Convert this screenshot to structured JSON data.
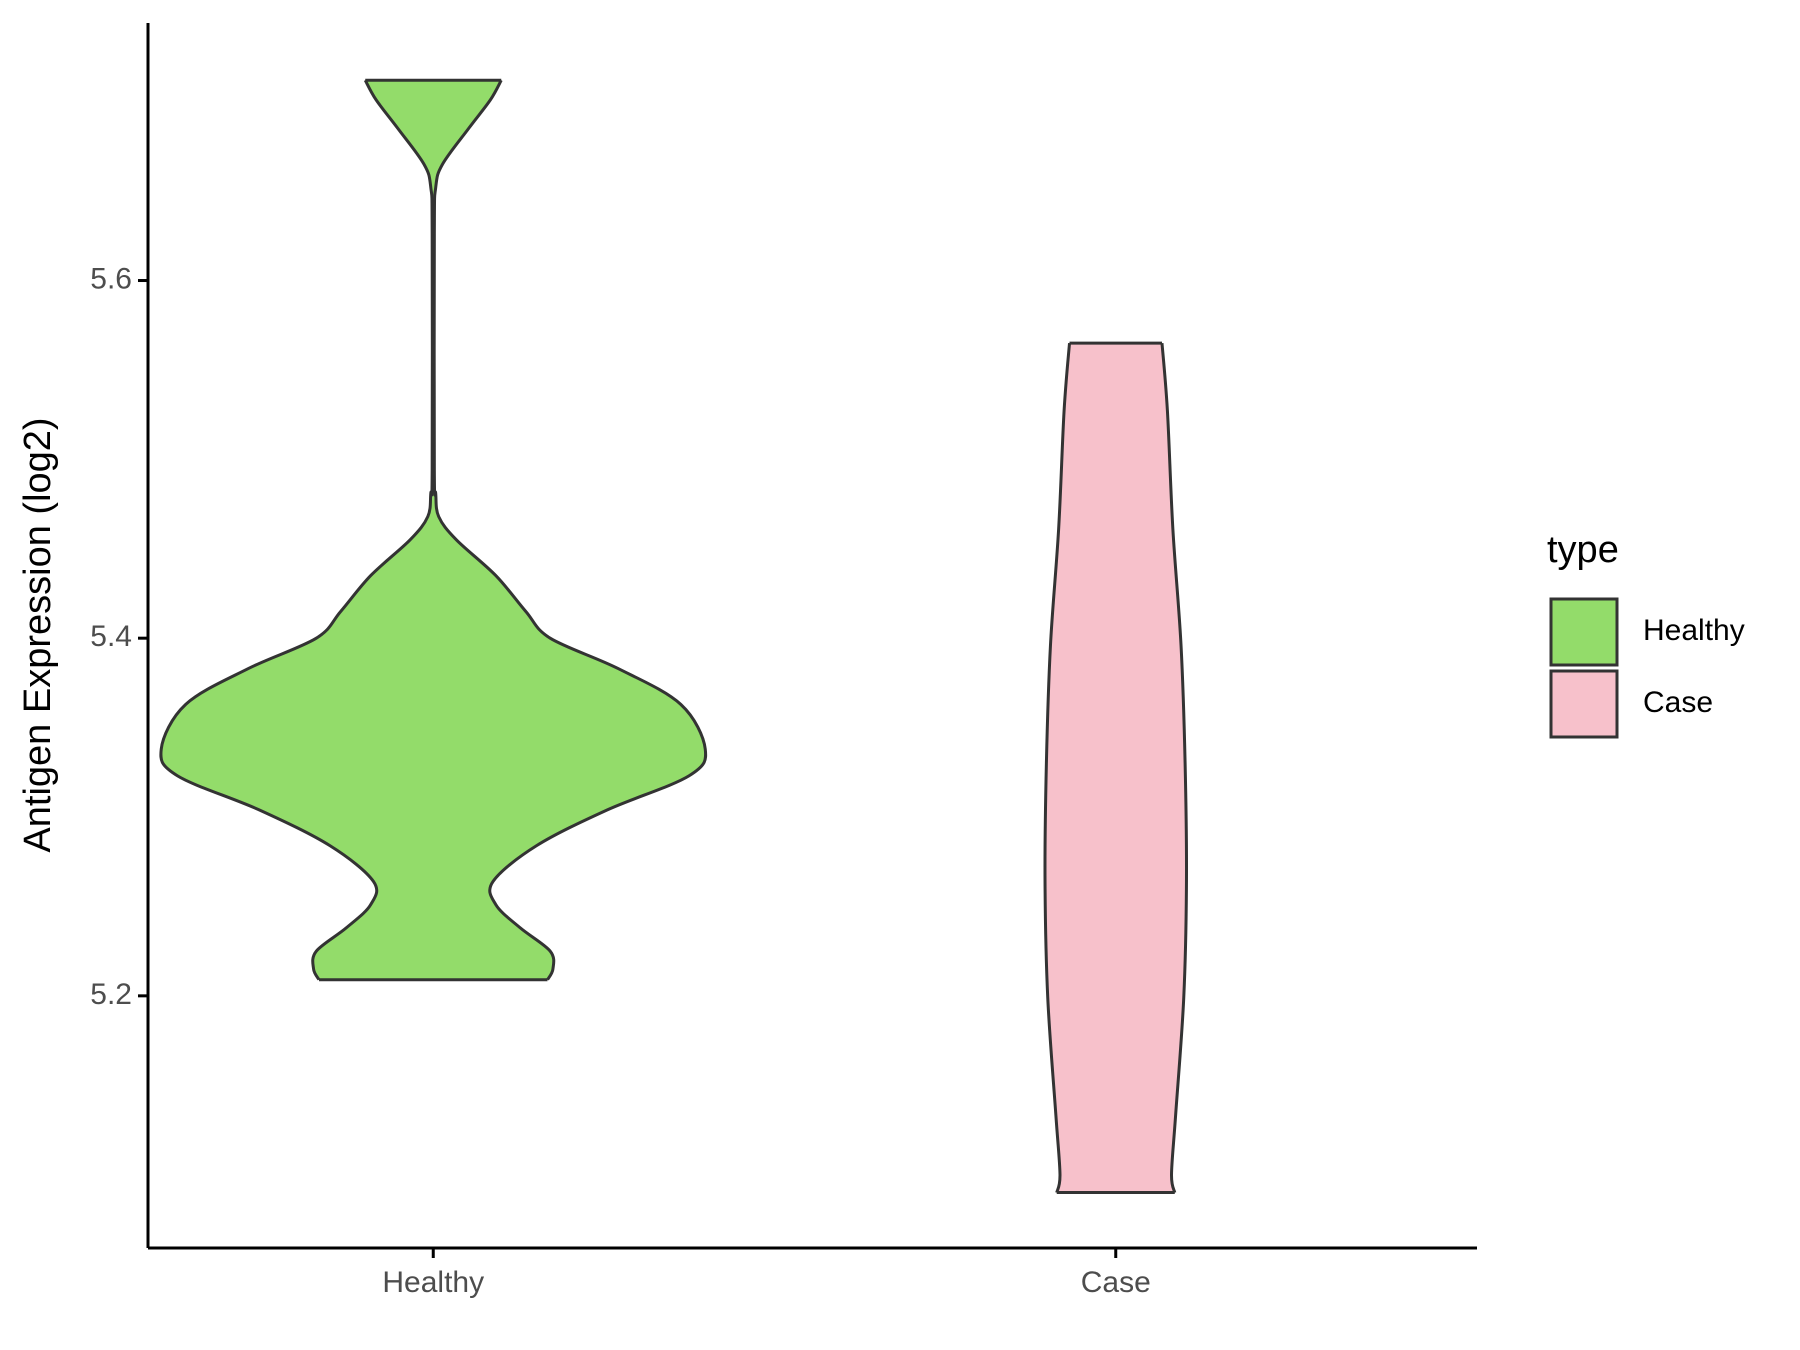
{
  "chart_data": {
    "type": "violin",
    "y_label": "Antigen Expression (log2)",
    "categories": [
      "Healthy",
      "Case"
    ],
    "legend_title": "type",
    "legend": "right",
    "ylim": [
      5.059,
      5.744
    ],
    "yticks": [
      5.2,
      5.4,
      5.6
    ],
    "series": [
      {
        "name": "Healthy",
        "color": "#93dc6a",
        "y": [
          5.712,
          5.701,
          5.685,
          5.665,
          5.652,
          5.626,
          5.494,
          5.481,
          5.468,
          5.455,
          5.435,
          5.415,
          5.4,
          5.383,
          5.363,
          5.338,
          5.323,
          5.304,
          5.284,
          5.264,
          5.251,
          5.238,
          5.225,
          5.215,
          5.209
        ],
        "width": [
          0.25,
          0.21,
          0.13,
          0.034,
          0.009,
          0.004,
          0.004,
          0.009,
          0.02,
          0.085,
          0.23,
          0.34,
          0.43,
          0.68,
          0.91,
          1,
          0.94,
          0.64,
          0.38,
          0.22,
          0.23,
          0.32,
          0.43,
          0.44,
          0.42
        ]
      },
      {
        "name": "Case",
        "color": "#f7c1cb",
        "y": [
          5.565,
          5.527,
          5.461,
          5.396,
          5.33,
          5.264,
          5.199,
          5.133,
          5.1,
          5.09
        ],
        "width": [
          0.17,
          0.19,
          0.21,
          0.24,
          0.255,
          0.26,
          0.25,
          0.22,
          0.205,
          0.217
        ]
      }
    ]
  }
}
